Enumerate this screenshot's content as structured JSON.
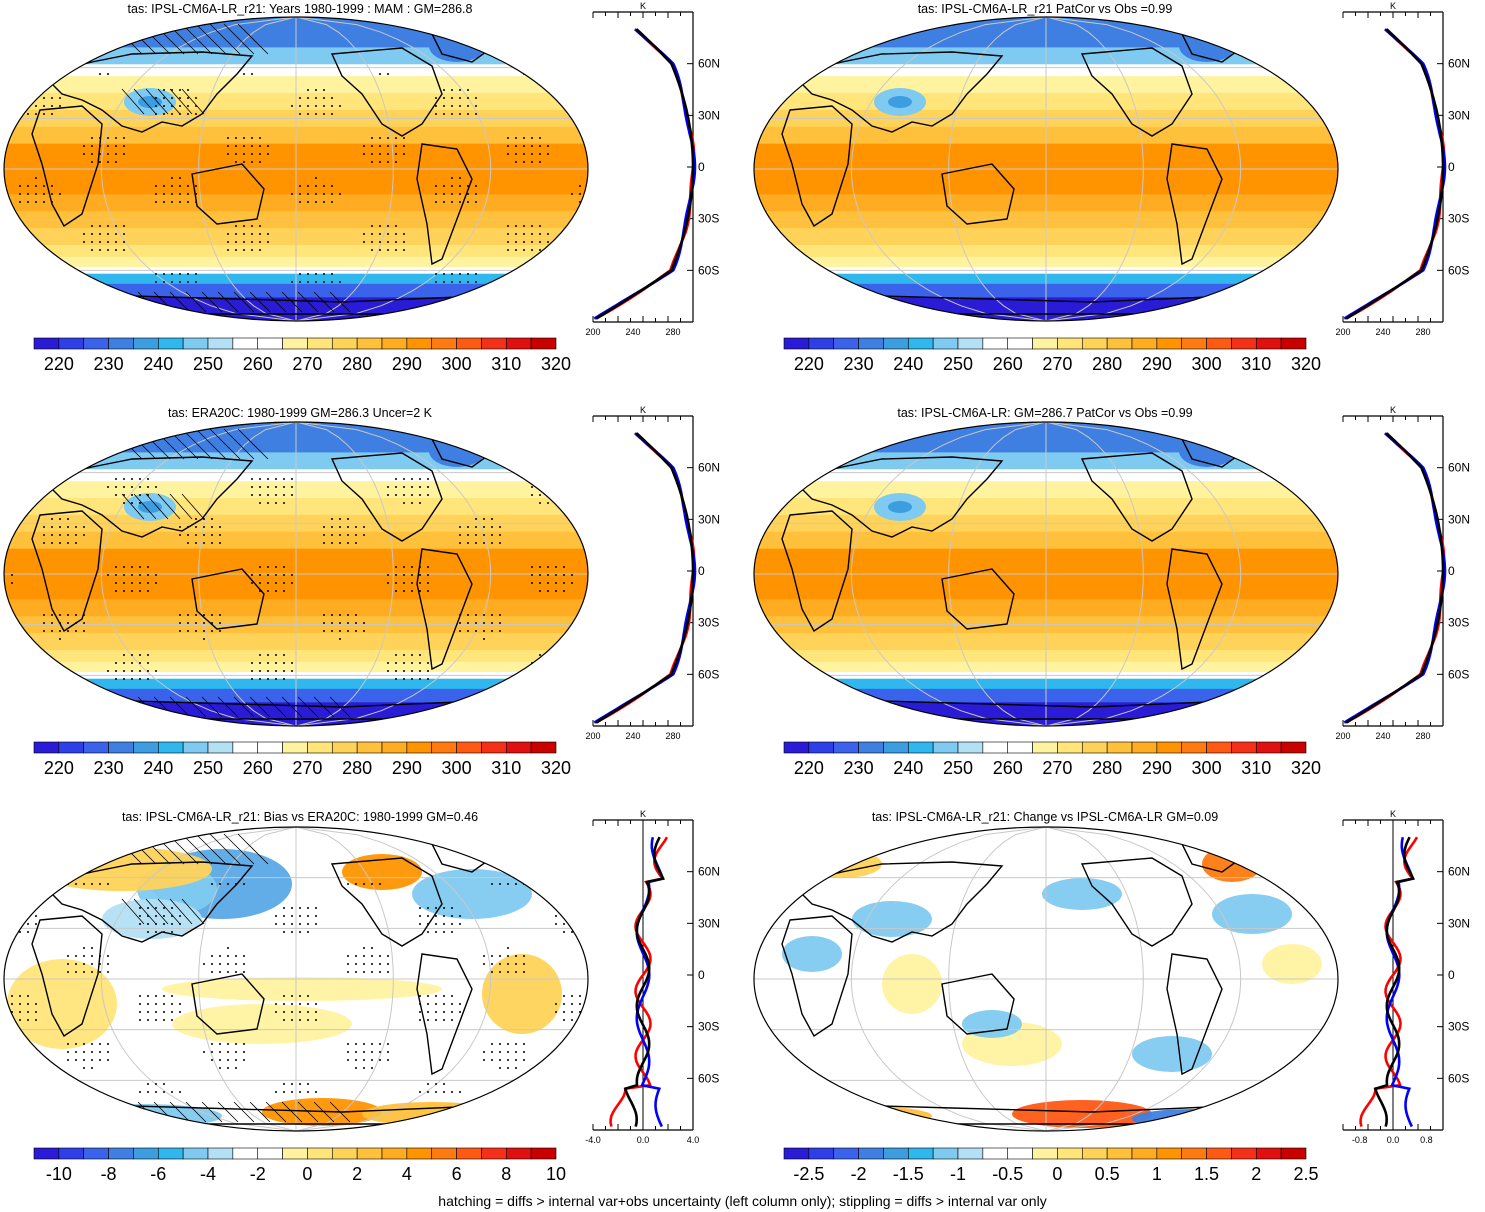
{
  "footer": "hatching = diffs > internal var+obs uncertainty (left column only); stippling = diffs > internal var only",
  "colors": {
    "abs": [
      "#2a1bd6",
      "#2f3fe6",
      "#3a62ea",
      "#3f7fe2",
      "#3c9de0",
      "#2fb7ee",
      "#7fcaf0",
      "#b3e0f5",
      "#ffffff",
      "#ffffff",
      "#fff3a0",
      "#ffe57a",
      "#ffd35a",
      "#ffc03c",
      "#ffac22",
      "#ff9400",
      "#ff7a10",
      "#ff5a14",
      "#f43018",
      "#e00f10",
      "#c80000"
    ],
    "diff": [
      "#2a1bd6",
      "#2f3fe6",
      "#3a62ea",
      "#3f7fe2",
      "#3c9de0",
      "#2fb7ee",
      "#7fcaf0",
      "#b3e0f5",
      "#ffffff",
      "#ffffff",
      "#fff3a0",
      "#ffe57a",
      "#ffd35a",
      "#ffc03c",
      "#ffac22",
      "#ff9400",
      "#ff7a10",
      "#ff5a14",
      "#f43018",
      "#e00f10",
      "#c80000"
    ],
    "profile_red": "#ff0000",
    "profile_blue": "#0000ff",
    "profile_black": "#000000",
    "land_outline": "#000000",
    "grid": "#c8c8c8"
  },
  "lat_labels": [
    "60N",
    "30N",
    "0",
    "30S",
    "60S"
  ],
  "panels": [
    {
      "title": "tas: IPSL-CM6A-LR_r21: Years 1980-1999 : MAM : GM=286.8",
      "kind": "abs",
      "hatch": true,
      "stipple": true,
      "colorbar_labels": [
        "220",
        "230",
        "240",
        "250",
        "260",
        "270",
        "280",
        "290",
        "300",
        "310",
        "320"
      ],
      "profile": {
        "unit": "K",
        "xticks": [
          "200",
          "240",
          "280"
        ],
        "xmin": 200,
        "xmax": 300,
        "zero_line": false
      }
    },
    {
      "title": "tas: IPSL-CM6A-LR_r21 PatCor vs Obs =0.99",
      "kind": "abs",
      "hatch": false,
      "stipple": false,
      "colorbar_labels": [
        "220",
        "230",
        "240",
        "250",
        "260",
        "270",
        "280",
        "290",
        "300",
        "310",
        "320"
      ],
      "profile": {
        "unit": "K",
        "xticks": [
          "200",
          "240",
          "280"
        ],
        "xmin": 200,
        "xmax": 300,
        "zero_line": false
      }
    },
    {
      "title": "tas: ERA20C: 1980-1999 GM=286.3 Uncer=2 K",
      "kind": "abs",
      "hatch": true,
      "stipple": true,
      "colorbar_labels": [
        "220",
        "230",
        "240",
        "250",
        "260",
        "270",
        "280",
        "290",
        "300",
        "310",
        "320"
      ],
      "profile": {
        "unit": "K",
        "xticks": [
          "200",
          "240",
          "280"
        ],
        "xmin": 200,
        "xmax": 300,
        "zero_line": false
      }
    },
    {
      "title": "tas: IPSL-CM6A-LR: GM=286.7 PatCor vs Obs =0.99",
      "kind": "abs",
      "hatch": false,
      "stipple": false,
      "colorbar_labels": [
        "220",
        "230",
        "240",
        "250",
        "260",
        "270",
        "280",
        "290",
        "300",
        "310",
        "320"
      ],
      "profile": {
        "unit": "K",
        "xticks": [
          "200",
          "240",
          "280"
        ],
        "xmin": 200,
        "xmax": 300,
        "zero_line": false
      }
    },
    {
      "title": "tas: IPSL-CM6A-LR_r21: Bias vs ERA20C: 1980-1999 GM=0.46",
      "kind": "diff",
      "hatch": true,
      "stipple": true,
      "colorbar_labels": [
        "-10",
        "-8",
        "-6",
        "-4",
        "-2",
        "0",
        "2",
        "4",
        "6",
        "8",
        "10"
      ],
      "profile": {
        "unit": "K",
        "xticks": [
          "-4.0",
          "0.0",
          "4.0"
        ],
        "xmin": -4,
        "xmax": 4,
        "zero_line": true
      }
    },
    {
      "title": "tas: IPSL-CM6A-LR_r21: Change vs IPSL-CM6A-LR GM=0.09",
      "kind": "diff",
      "hatch": false,
      "stipple": false,
      "colorbar_labels": [
        "-2.5",
        "-2",
        "-1.5",
        "-1",
        "-0.5",
        "0",
        "0.5",
        "1",
        "1.5",
        "2",
        "2.5"
      ],
      "profile": {
        "unit": "K",
        "xticks": [
          "-0.8",
          "0.0",
          "0.8"
        ],
        "xmin": -1.2,
        "xmax": 1.2,
        "zero_line": true
      }
    }
  ]
}
